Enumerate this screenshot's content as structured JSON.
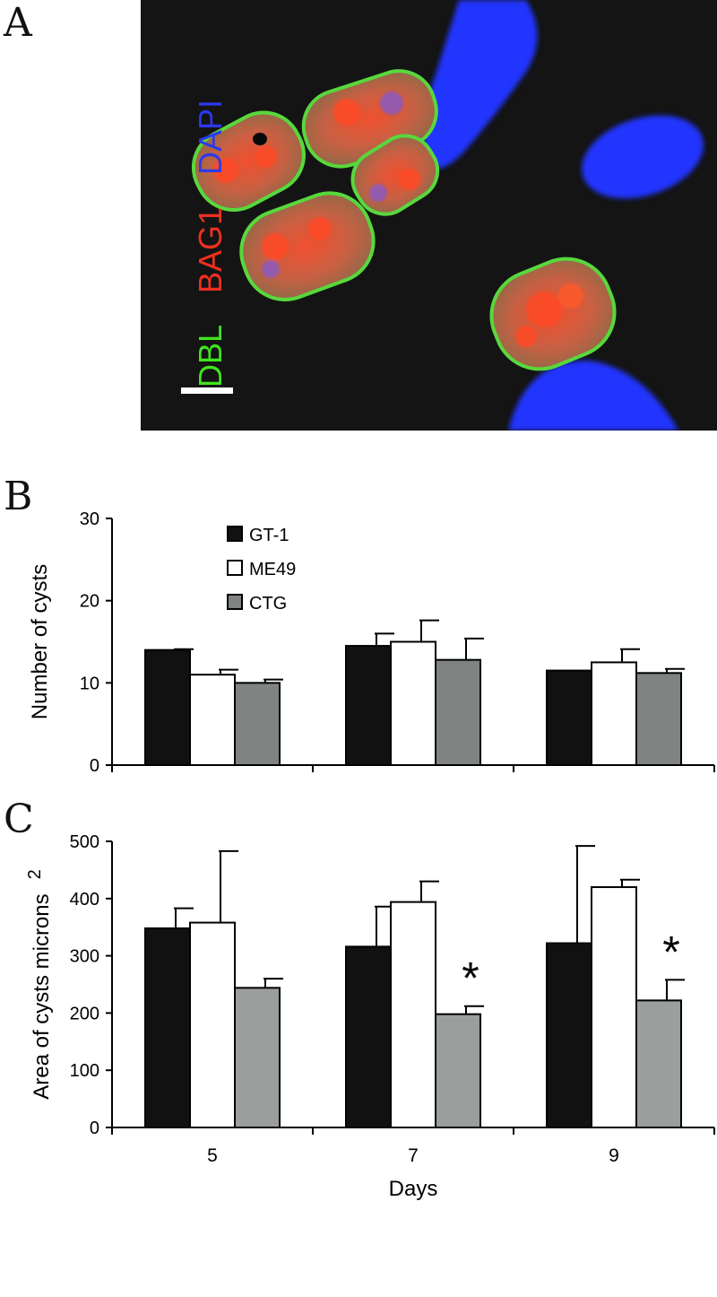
{
  "figure": {
    "panels": [
      "A",
      "B",
      "C"
    ],
    "stain_labels": [
      {
        "text": "DBL",
        "color": "#41e41e"
      },
      {
        "text": "BAG1",
        "color": "#f0301f"
      },
      {
        "text": "DAPI",
        "color": "#2a39ee"
      }
    ],
    "colors": {
      "micro_background": "#141414",
      "cyst_outline": "#52d63a",
      "cyst_fill": "#d8583a",
      "nucleus": "#2233ff"
    }
  },
  "chart_data": [
    {
      "type": "bar",
      "panel": "B",
      "categories": [
        "5",
        "7",
        "9"
      ],
      "series": [
        {
          "name": "GT-1",
          "color": "#111111",
          "values": [
            14,
            14.5,
            11.5
          ],
          "errors": [
            0.1,
            1.5,
            0
          ]
        },
        {
          "name": "ME49",
          "color": "#ffffff",
          "values": [
            11,
            15,
            12.5
          ],
          "errors": [
            0.6,
            2.6,
            1.6
          ]
        },
        {
          "name": "CTG",
          "color": "#7f8482",
          "values": [
            10,
            12.8,
            11.2
          ],
          "errors": [
            0.4,
            2.6,
            0.5
          ]
        }
      ],
      "xlabel": "Days",
      "ylabel": "Number of cysts",
      "ylim": [
        0,
        30
      ],
      "yticks": [
        0,
        10,
        20,
        30
      ],
      "legend": "top-left"
    },
    {
      "type": "bar",
      "panel": "C",
      "categories": [
        "5",
        "7",
        "9"
      ],
      "series": [
        {
          "name": "GT-1",
          "color": "#111111",
          "values": [
            348,
            316,
            322
          ],
          "errors": [
            35,
            70,
            170
          ]
        },
        {
          "name": "ME49",
          "color": "#ffffff",
          "values": [
            358,
            394,
            420
          ],
          "errors": [
            125,
            36,
            13
          ]
        },
        {
          "name": "CTG",
          "color": "#9a9e9c",
          "values": [
            244,
            198,
            222
          ],
          "errors": [
            16,
            14,
            36
          ]
        }
      ],
      "significance": [
        {
          "category": "7",
          "series": "CTG",
          "mark": "*"
        },
        {
          "category": "9",
          "series": "CTG",
          "mark": "*"
        }
      ],
      "xlabel": "Days",
      "ylabel": "Area of cysts microns",
      "ylabel_superscript": "2",
      "ylim": [
        0,
        500
      ],
      "yticks": [
        0,
        100,
        200,
        300,
        400,
        500
      ]
    }
  ]
}
